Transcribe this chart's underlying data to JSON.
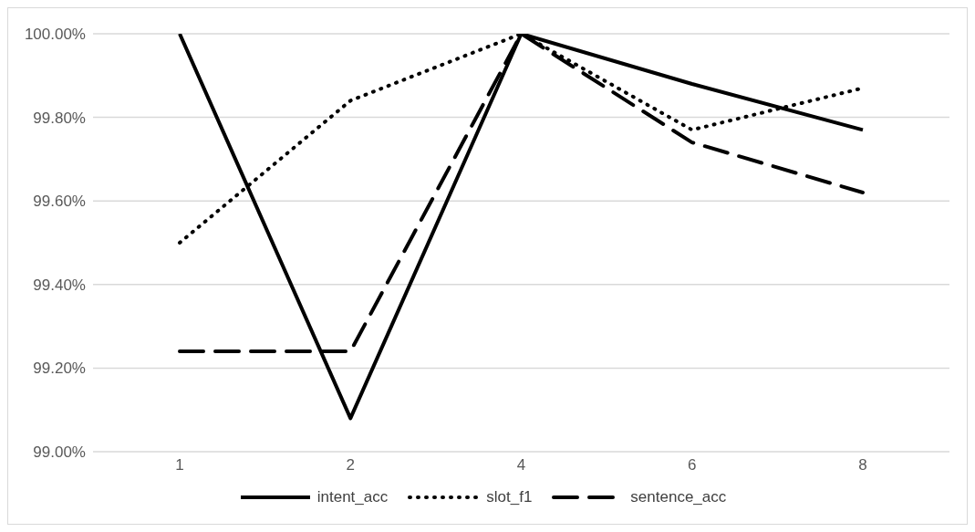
{
  "chart_data": {
    "type": "line",
    "categories": [
      "1",
      "2",
      "4",
      "6",
      "8"
    ],
    "series": [
      {
        "name": "intent_acc",
        "color": "#000000",
        "line_style": "solid",
        "values": [
          100,
          99.08,
          100,
          99.88,
          99.77
        ]
      },
      {
        "name": "slot_f1",
        "color": "#000000",
        "line_style": "dotted",
        "values": [
          99.5,
          99.84,
          100,
          99.77,
          99.87
        ]
      },
      {
        "name": "sentence_acc",
        "color": "#000000",
        "line_style": "dashed",
        "values": [
          99.24,
          99.24,
          100,
          99.74,
          99.62
        ]
      }
    ],
    "ylim": [
      99,
      100
    ],
    "yticks": [
      {
        "value": 99,
        "label": "99.00%"
      },
      {
        "value": 99.2,
        "label": "99.20%"
      },
      {
        "value": 99.4,
        "label": "99.40%"
      },
      {
        "value": 99.6,
        "label": "99.60%"
      },
      {
        "value": 99.8,
        "label": "99.80%"
      },
      {
        "value": 100,
        "label": "100.00%"
      }
    ],
    "grid": "y",
    "legend": "bottom",
    "marker": "none"
  }
}
